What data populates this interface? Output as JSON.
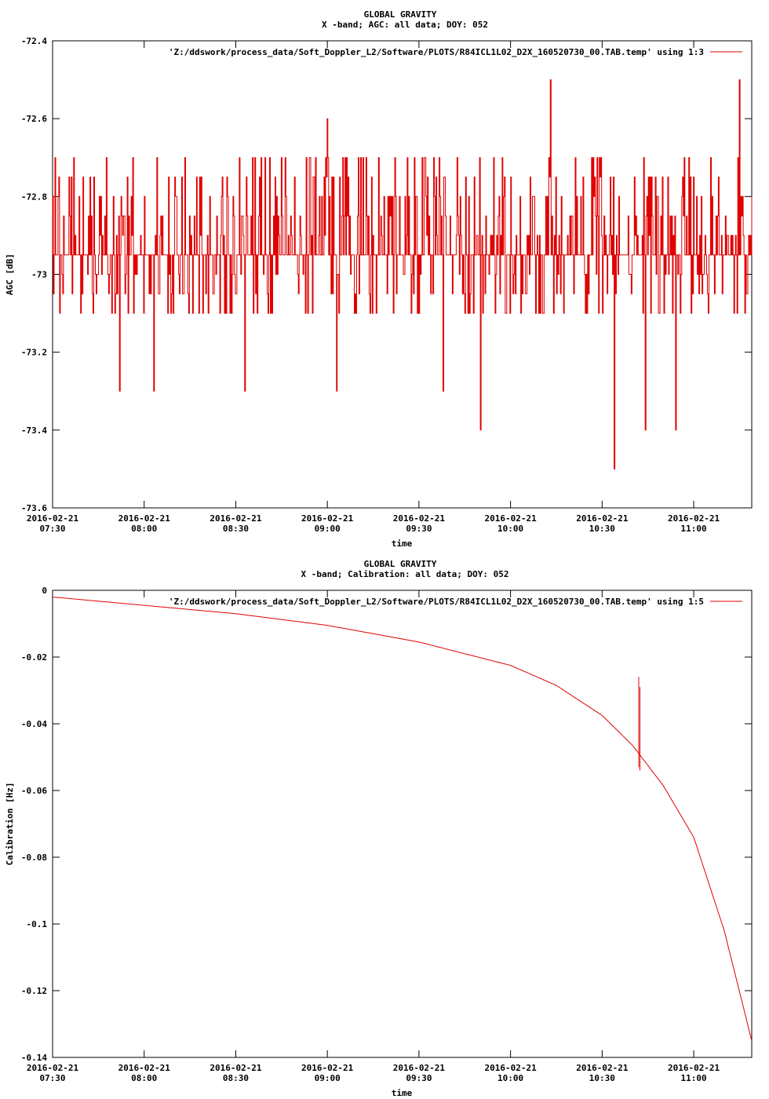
{
  "chart_data": [
    {
      "type": "line",
      "title": "GLOBAL GRAVITY",
      "subtitle": "X -band; AGC: all data; DOY: 052",
      "xlabel": "time",
      "ylabel": "AGC [dB]",
      "ylim": [
        -73.6,
        -72.4
      ],
      "y_ticks": [
        "-72.4",
        "-72.6",
        "-72.8",
        "-73",
        "-73.2",
        "-73.4",
        "-73.6"
      ],
      "y_tick_values": [
        -72.4,
        -72.6,
        -72.8,
        -73.0,
        -73.2,
        -73.4,
        -73.6
      ],
      "x_tick_dates": [
        "2016-02-21",
        "2016-02-21",
        "2016-02-21",
        "2016-02-21",
        "2016-02-21",
        "2016-02-21",
        "2016-02-21",
        "2016-02-21"
      ],
      "x_tick_times": [
        "07:30",
        "08:00",
        "08:30",
        "09:00",
        "09:30",
        "10:00",
        "10:30",
        "11:00"
      ],
      "xlim": [
        "07:30",
        "11:19"
      ],
      "legend_position": "top-right",
      "grid": false,
      "series": [
        {
          "name": "'Z:/ddswork/process_data/Soft_Doppler_L2/Software/PLOTS/R84ICL1L02_D2X_160520730_00.TAB.temp' using 1:3",
          "color": "#e00000",
          "baseline": -72.95,
          "typical_range": [
            -73.1,
            -72.7
          ],
          "peaks": [
            {
              "time": "09:00",
              "value": -72.6
            },
            {
              "time": "10:13",
              "value": -72.5
            },
            {
              "time": "11:15",
              "value": -72.5
            }
          ],
          "troughs": [
            {
              "time": "07:52",
              "value": -73.3
            },
            {
              "time": "08:03",
              "value": -73.3
            },
            {
              "time": "08:33",
              "value": -73.3
            },
            {
              "time": "09:03",
              "value": -73.3
            },
            {
              "time": "09:38",
              "value": -73.3
            },
            {
              "time": "09:50",
              "value": -73.4
            },
            {
              "time": "10:34",
              "value": -73.5
            },
            {
              "time": "10:44",
              "value": -73.4
            },
            {
              "time": "10:54",
              "value": -73.4
            }
          ]
        }
      ]
    },
    {
      "type": "line",
      "title": "GLOBAL GRAVITY",
      "subtitle": "X -band; Calibration: all data; DOY: 052",
      "xlabel": "time",
      "ylabel": "Calibration [Hz]",
      "ylim": [
        -0.14,
        0
      ],
      "y_ticks": [
        "0",
        "-0.02",
        "-0.04",
        "-0.06",
        "-0.08",
        "-0.1",
        "-0.12",
        "-0.14"
      ],
      "y_tick_values": [
        0,
        -0.02,
        -0.04,
        -0.06,
        -0.08,
        -0.1,
        -0.12,
        -0.14
      ],
      "x_tick_dates": [
        "2016-02-21",
        "2016-02-21",
        "2016-02-21",
        "2016-02-21",
        "2016-02-21",
        "2016-02-21",
        "2016-02-21",
        "2016-02-21"
      ],
      "x_tick_times": [
        "07:30",
        "08:00",
        "08:30",
        "09:00",
        "09:30",
        "10:00",
        "10:30",
        "11:00"
      ],
      "xlim": [
        "07:30",
        "11:19"
      ],
      "legend_position": "top-right",
      "grid": false,
      "series": [
        {
          "name": "'Z:/ddswork/process_data/Soft_Doppler_L2/Software/PLOTS/R84ICL1L02_D2X_160520730_00.TAB.temp' using 1:5",
          "color": "#e00000",
          "points": [
            {
              "time": "07:30",
              "value": -0.002
            },
            {
              "time": "08:00",
              "value": -0.0045
            },
            {
              "time": "08:30",
              "value": -0.007
            },
            {
              "time": "09:00",
              "value": -0.0105
            },
            {
              "time": "09:30",
              "value": -0.0155
            },
            {
              "time": "10:00",
              "value": -0.0225
            },
            {
              "time": "10:15",
              "value": -0.0285
            },
            {
              "time": "10:30",
              "value": -0.0375
            },
            {
              "time": "10:40",
              "value": -0.0465
            },
            {
              "time": "10:50",
              "value": -0.0585
            },
            {
              "time": "11:00",
              "value": -0.074
            },
            {
              "time": "11:10",
              "value": -0.102
            },
            {
              "time": "11:19",
              "value": -0.135
            }
          ],
          "spike": {
            "time": "10:42",
            "base": -0.053,
            "peak": -0.026
          }
        }
      ]
    }
  ]
}
